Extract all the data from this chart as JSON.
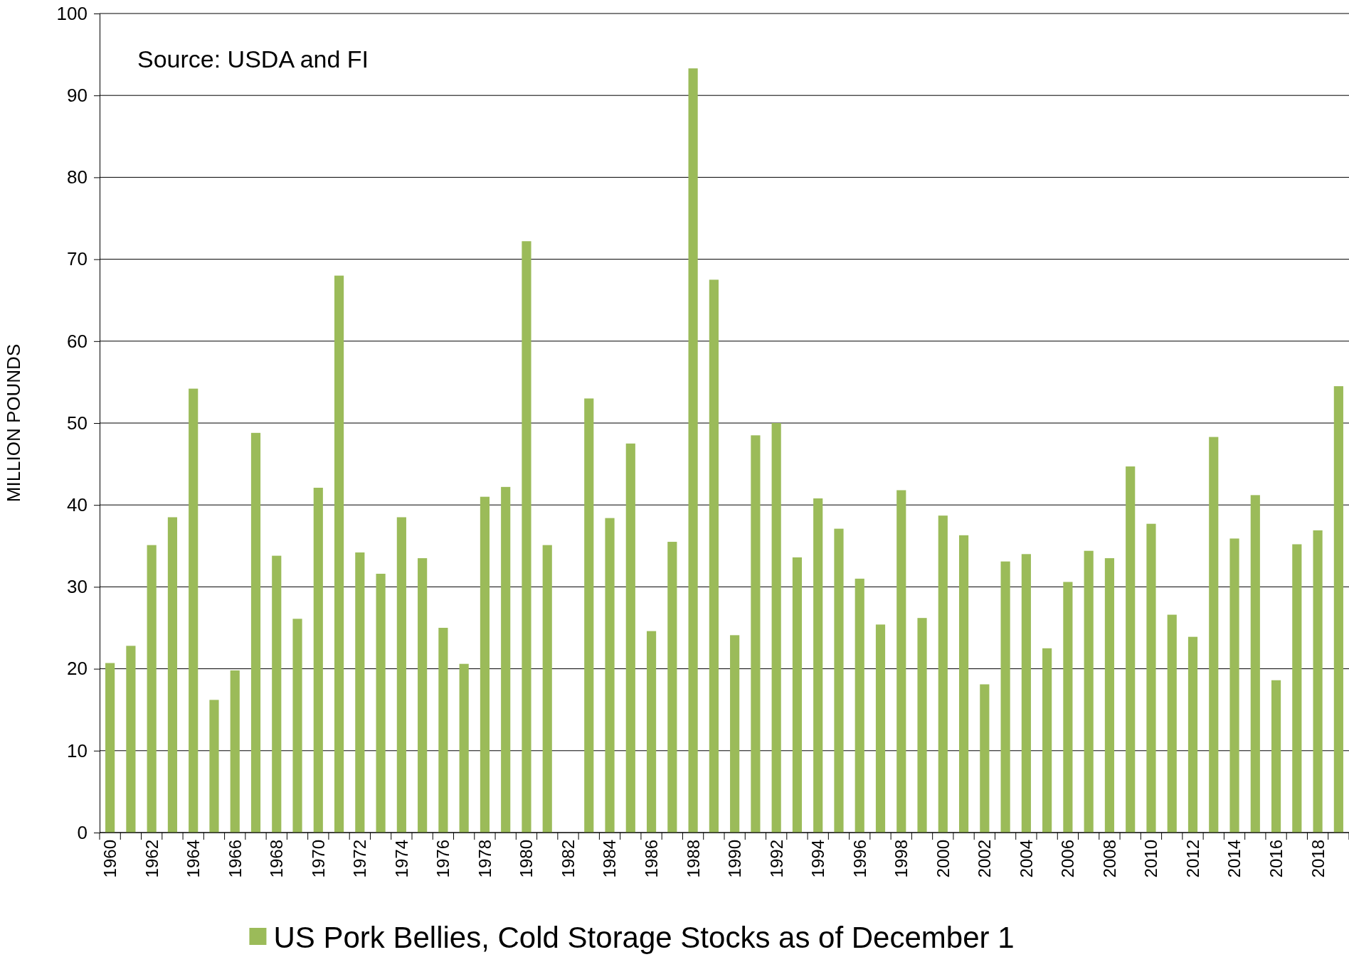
{
  "chart_data": {
    "type": "bar",
    "ylabel": "MILLION POUNDS",
    "annotations": [
      "Source: USDA and FI"
    ],
    "categories": [
      "1960",
      null,
      "1962",
      null,
      "1964",
      null,
      "1966",
      null,
      "1968",
      null,
      "1970",
      null,
      "1972",
      null,
      "1974",
      null,
      "1976",
      null,
      "1978",
      null,
      "1980",
      null,
      "1982",
      null,
      "1984",
      null,
      "1986",
      null,
      "1988",
      null,
      "1990",
      null,
      "1992",
      null,
      "1994",
      null,
      "1996",
      null,
      "1998",
      null,
      "2000",
      null,
      "2002",
      null,
      "2004",
      null,
      "2006",
      null,
      "2008",
      null,
      "2010",
      null,
      "2012",
      null,
      "2014",
      null,
      "2016",
      null,
      "2018",
      null
    ],
    "series": [
      {
        "name": "US Pork Bellies, Cold Storage Stocks as of December 1",
        "color": "#9bbb59",
        "values": [
          20.7,
          22.8,
          35.1,
          38.5,
          54.2,
          16.2,
          19.8,
          48.8,
          33.8,
          26.1,
          42.1,
          68.0,
          34.2,
          31.6,
          38.5,
          33.5,
          25.0,
          20.6,
          41.0,
          42.2,
          72.2,
          35.1,
          null,
          53.0,
          38.4,
          47.5,
          24.6,
          35.5,
          93.3,
          67.5,
          24.1,
          48.5,
          50.0,
          33.6,
          40.8,
          37.1,
          31.0,
          25.4,
          41.8,
          26.2,
          38.7,
          36.3,
          18.1,
          33.1,
          34.0,
          22.5,
          30.6,
          34.4,
          33.5,
          44.7,
          37.7,
          26.6,
          23.9,
          48.3,
          35.9,
          41.2,
          18.6,
          35.2,
          36.9,
          54.5
        ]
      }
    ],
    "ylim": [
      0,
      100
    ],
    "yticks": [
      0,
      10,
      20,
      30,
      40,
      50,
      60,
      70,
      80,
      90,
      100
    ],
    "grid": "y",
    "legend": "bottom"
  }
}
